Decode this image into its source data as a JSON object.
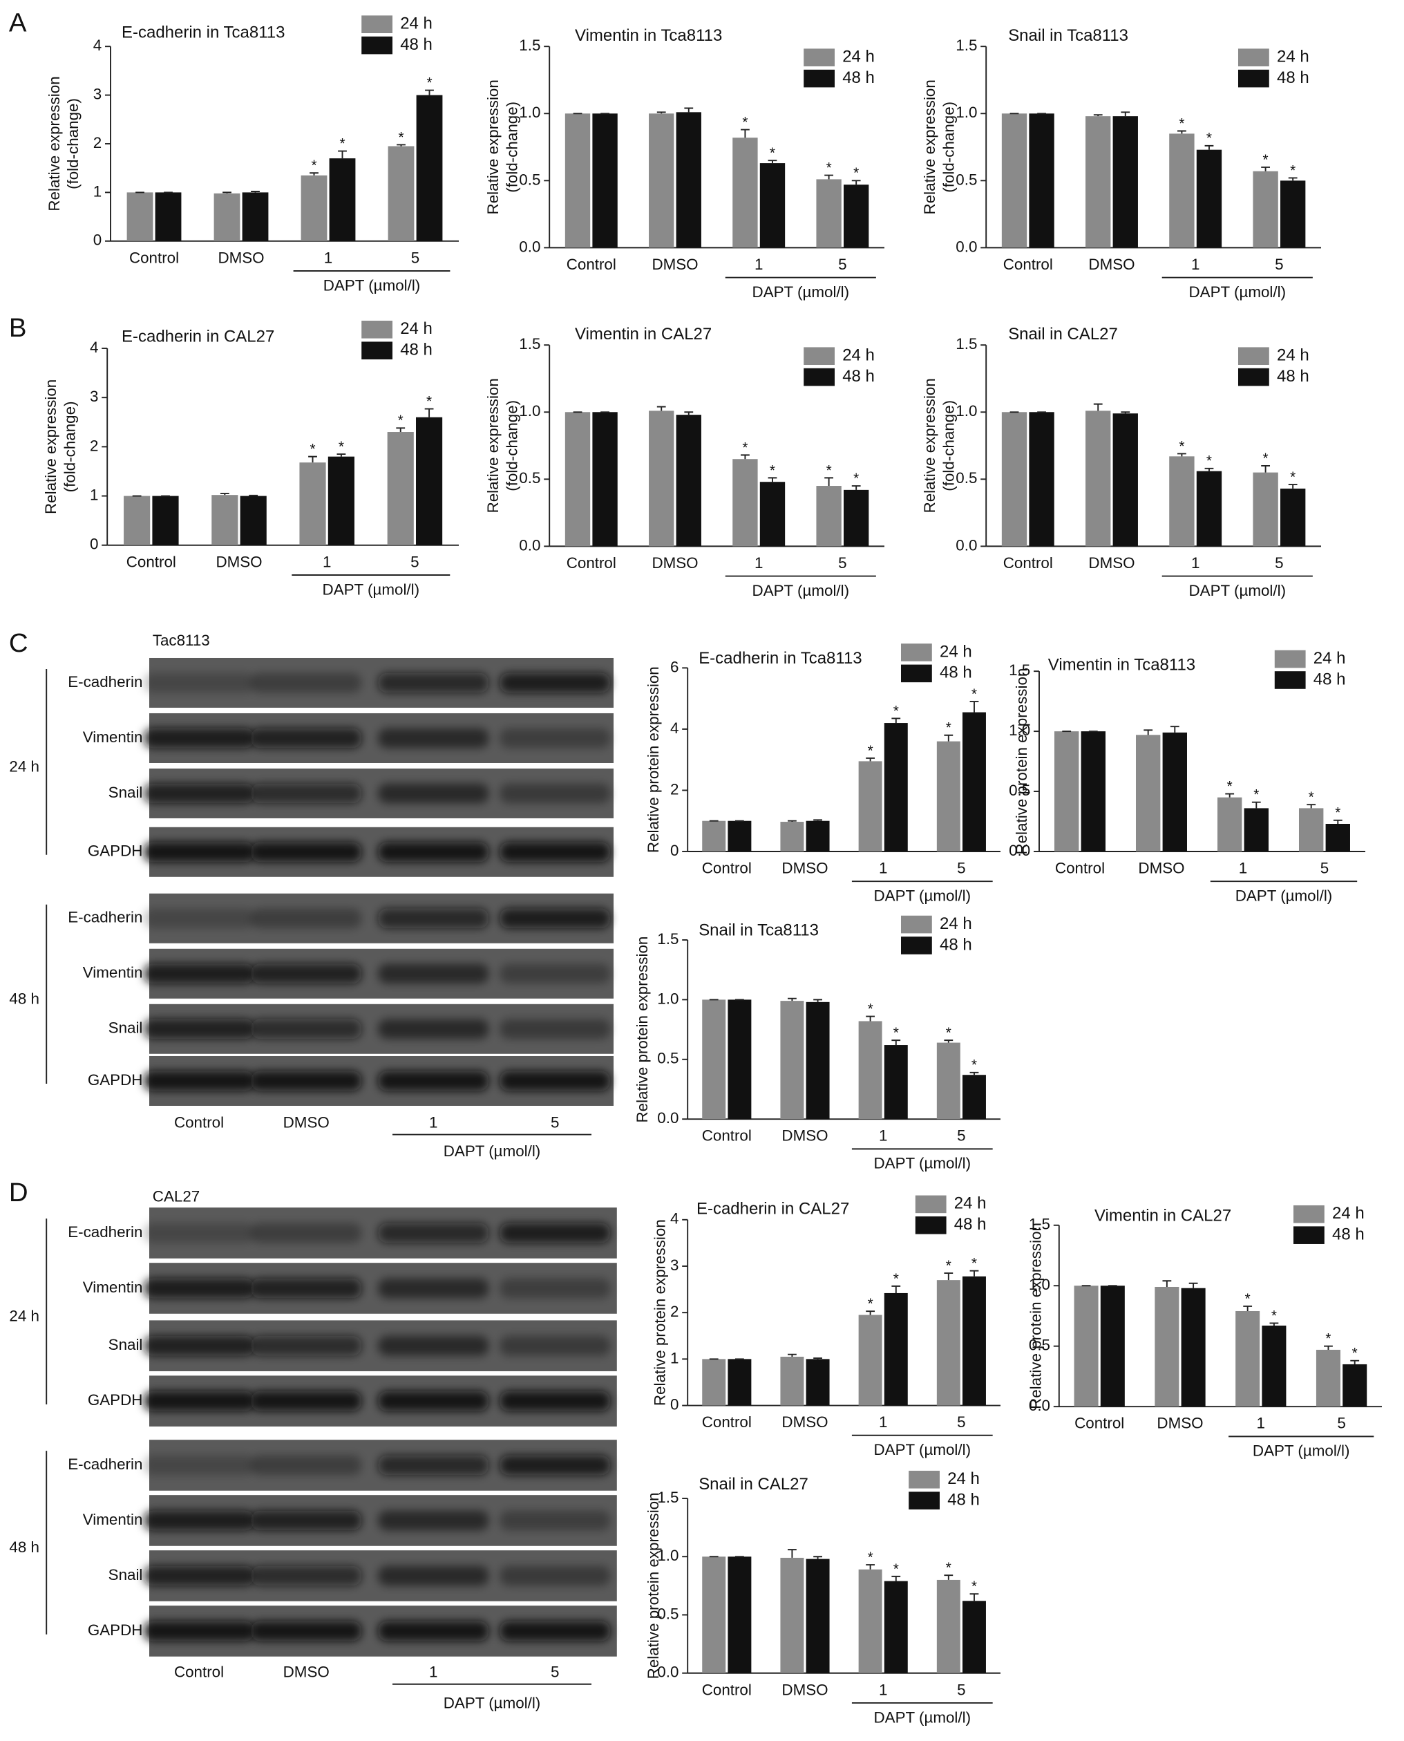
{
  "panel_labels": [
    "A",
    "B",
    "C",
    "D"
  ],
  "blots": [
    {
      "cell": "Tac8113",
      "times": [
        "24 h",
        "48 h"
      ],
      "rows": [
        "E-cadherin",
        "Vimentin",
        "Snail",
        "GAPDH"
      ],
      "lanes": [
        "Control",
        "DMSO",
        "1",
        "5"
      ],
      "lane_group": "DAPT (µmol/l)"
    },
    {
      "cell": "CAL27",
      "times": [
        "24 h",
        "48 h"
      ],
      "rows": [
        "E-cadherin",
        "Vimentin",
        "Snail",
        "GAPDH"
      ],
      "lanes": [
        "Control",
        "DMSO",
        "1",
        "5"
      ],
      "lane_group": "DAPT (µmol/l)"
    }
  ],
  "chart_data": [
    {
      "type": "bar",
      "title": "E-cadherin in Tca8113",
      "ylabel": [
        "Relative expression",
        "(fold-change)"
      ],
      "categories": [
        "Control",
        "DMSO",
        "1",
        "5"
      ],
      "group_label": "DAPT (µmol/l)",
      "ylim": [
        0,
        4
      ],
      "yticks": [
        0,
        1,
        2,
        3,
        4
      ],
      "series": [
        {
          "name": "24 h",
          "color": "#8a8a8a",
          "values": [
            1,
            0.98,
            1.35,
            1.95
          ],
          "errors": [
            0,
            0.02,
            0.05,
            0.03
          ],
          "stars": [
            null,
            null,
            "*",
            "*"
          ]
        },
        {
          "name": "48 h",
          "color": "#111111",
          "values": [
            1,
            1.0,
            1.7,
            3.0
          ],
          "errors": [
            0,
            0.02,
            0.15,
            0.1
          ],
          "stars": [
            null,
            null,
            "*",
            "*"
          ]
        }
      ]
    },
    {
      "type": "bar",
      "title": "Vimentin in Tca8113",
      "ylabel": [
        "Relative expression",
        "(fold-change)"
      ],
      "categories": [
        "Control",
        "DMSO",
        "1",
        "5"
      ],
      "group_label": "DAPT (µmol/l)",
      "ylim": [
        0,
        1.5
      ],
      "yticks": [
        {
          "value": 0,
          "label": "0.0"
        },
        0.5,
        {
          "value": 1,
          "label": "1.0"
        },
        1.5
      ],
      "series": [
        {
          "name": "24 h",
          "color": "#8a8a8a",
          "values": [
            1,
            1.0,
            0.82,
            0.51
          ],
          "errors": [
            0,
            0.01,
            0.06,
            0.03
          ],
          "stars": [
            null,
            null,
            "*",
            "*"
          ]
        },
        {
          "name": "48 h",
          "color": "#111111",
          "values": [
            1,
            1.01,
            0.63,
            0.47
          ],
          "errors": [
            0,
            0.03,
            0.02,
            0.03
          ],
          "stars": [
            null,
            null,
            "*",
            "*"
          ]
        }
      ]
    },
    {
      "type": "bar",
      "title": "Snail in Tca8113",
      "ylabel": [
        "Relative expression",
        "(fold-change)"
      ],
      "categories": [
        "Control",
        "DMSO",
        "1",
        "5"
      ],
      "group_label": "DAPT (µmol/l)",
      "ylim": [
        0,
        1.5
      ],
      "yticks": [
        {
          "value": 0,
          "label": "0.0"
        },
        0.5,
        {
          "value": 1,
          "label": "1.0"
        },
        1.5
      ],
      "series": [
        {
          "name": "24 h",
          "color": "#8a8a8a",
          "values": [
            1,
            0.98,
            0.85,
            0.57
          ],
          "errors": [
            0,
            0.01,
            0.02,
            0.03
          ],
          "stars": [
            null,
            null,
            "*",
            "*"
          ]
        },
        {
          "name": "48 h",
          "color": "#111111",
          "values": [
            1,
            0.98,
            0.73,
            0.5
          ],
          "errors": [
            0,
            0.03,
            0.03,
            0.02
          ],
          "stars": [
            null,
            null,
            "*",
            "*"
          ]
        }
      ]
    },
    {
      "type": "bar",
      "title": "E-cadherin in CAL27",
      "ylabel": [
        "Relative expression",
        "(fold-change)"
      ],
      "categories": [
        "Control",
        "DMSO",
        "1",
        "5"
      ],
      "group_label": "DAPT (µmol/l)",
      "ylim": [
        0,
        4
      ],
      "yticks": [
        0,
        1,
        2,
        3,
        4
      ],
      "series": [
        {
          "name": "24 h",
          "color": "#8a8a8a",
          "values": [
            1,
            1.02,
            1.68,
            2.3
          ],
          "errors": [
            0,
            0.03,
            0.12,
            0.08
          ],
          "stars": [
            null,
            null,
            "*",
            "*"
          ]
        },
        {
          "name": "48 h",
          "color": "#111111",
          "values": [
            1,
            1.0,
            1.8,
            2.6
          ],
          "errors": [
            0,
            0.01,
            0.05,
            0.17
          ],
          "stars": [
            null,
            null,
            "*",
            "*"
          ]
        }
      ]
    },
    {
      "type": "bar",
      "title": "Vimentin in CAL27",
      "ylabel": [
        "Relative expression",
        "(fold-change)"
      ],
      "categories": [
        "Control",
        "DMSO",
        "1",
        "5"
      ],
      "group_label": "DAPT (µmol/l)",
      "ylim": [
        0,
        1.5
      ],
      "yticks": [
        {
          "value": 0,
          "label": "0.0"
        },
        0.5,
        {
          "value": 1,
          "label": "1.0"
        },
        1.5
      ],
      "series": [
        {
          "name": "24 h",
          "color": "#8a8a8a",
          "values": [
            1,
            1.01,
            0.65,
            0.45
          ],
          "errors": [
            0,
            0.03,
            0.03,
            0.06
          ],
          "stars": [
            null,
            null,
            "*",
            "*"
          ]
        },
        {
          "name": "48 h",
          "color": "#111111",
          "values": [
            1,
            0.98,
            0.48,
            0.42
          ],
          "errors": [
            0,
            0.02,
            0.03,
            0.03
          ],
          "stars": [
            null,
            null,
            "*",
            "*"
          ]
        }
      ]
    },
    {
      "type": "bar",
      "title": "Snail in CAL27",
      "ylabel": [
        "Relative expression",
        "(fold-change)"
      ],
      "categories": [
        "Control",
        "DMSO",
        "1",
        "5"
      ],
      "group_label": "DAPT (µmol/l)",
      "ylim": [
        0,
        1.5
      ],
      "yticks": [
        {
          "value": 0,
          "label": "0.0"
        },
        0.5,
        {
          "value": 1,
          "label": "1.0"
        },
        1.5
      ],
      "series": [
        {
          "name": "24 h",
          "color": "#8a8a8a",
          "values": [
            1,
            1.01,
            0.67,
            0.55
          ],
          "errors": [
            0,
            0.05,
            0.02,
            0.05
          ],
          "stars": [
            null,
            null,
            "*",
            "*"
          ]
        },
        {
          "name": "48 h",
          "color": "#111111",
          "values": [
            1,
            0.99,
            0.56,
            0.43
          ],
          "errors": [
            0,
            0.01,
            0.02,
            0.03
          ],
          "stars": [
            null,
            null,
            "*",
            "*"
          ]
        }
      ]
    },
    {
      "type": "bar",
      "title": "E-cadherin in Tca8113",
      "ylabel": [
        "Relative protein expression"
      ],
      "categories": [
        "Control",
        "DMSO",
        "1",
        "5"
      ],
      "group_label": "DAPT (µmol/l)",
      "ylim": [
        0,
        6
      ],
      "yticks": [
        0,
        2,
        4,
        6
      ],
      "series": [
        {
          "name": "24 h",
          "color": "#8a8a8a",
          "values": [
            1,
            0.97,
            2.95,
            3.6
          ],
          "errors": [
            0,
            0.03,
            0.1,
            0.2
          ],
          "stars": [
            null,
            null,
            "*",
            "*"
          ]
        },
        {
          "name": "48 h",
          "color": "#111111",
          "values": [
            1,
            1.0,
            4.2,
            4.55
          ],
          "errors": [
            0,
            0.03,
            0.15,
            0.35
          ],
          "stars": [
            null,
            null,
            "*",
            "*"
          ]
        }
      ]
    },
    {
      "type": "bar",
      "title": "Vimentin in Tca8113",
      "ylabel": [
        "Relative protein expression"
      ],
      "categories": [
        "Control",
        "DMSO",
        "1",
        "5"
      ],
      "group_label": "DAPT (µmol/l)",
      "ylim": [
        0,
        1.5
      ],
      "yticks": [
        {
          "value": 0,
          "label": "0.0"
        },
        0.5,
        {
          "value": 1,
          "label": "1.0"
        },
        1.5
      ],
      "series": [
        {
          "name": "24 h",
          "color": "#8a8a8a",
          "values": [
            1,
            0.97,
            0.45,
            0.36
          ],
          "errors": [
            0,
            0.04,
            0.03,
            0.03
          ],
          "stars": [
            null,
            null,
            "*",
            "*"
          ]
        },
        {
          "name": "48 h",
          "color": "#111111",
          "values": [
            1,
            0.99,
            0.36,
            0.23
          ],
          "errors": [
            0,
            0.05,
            0.05,
            0.03
          ],
          "stars": [
            null,
            null,
            "*",
            "*"
          ]
        }
      ]
    },
    {
      "type": "bar",
      "title": "Snail in Tca8113",
      "ylabel": [
        "Relative protein expression"
      ],
      "categories": [
        "Control",
        "DMSO",
        "1",
        "5"
      ],
      "group_label": "DAPT (µmol/l)",
      "ylim": [
        0,
        1.5
      ],
      "yticks": [
        {
          "value": 0,
          "label": "0.0"
        },
        0.5,
        {
          "value": 1,
          "label": "1.0"
        },
        1.5
      ],
      "series": [
        {
          "name": "24 h",
          "color": "#8a8a8a",
          "values": [
            1,
            0.99,
            0.82,
            0.64
          ],
          "errors": [
            0,
            0.02,
            0.04,
            0.02
          ],
          "stars": [
            null,
            null,
            "*",
            "*"
          ]
        },
        {
          "name": "48 h",
          "color": "#111111",
          "values": [
            1,
            0.98,
            0.62,
            0.37
          ],
          "errors": [
            0,
            0.02,
            0.04,
            0.02
          ],
          "stars": [
            null,
            null,
            "*",
            "*"
          ]
        }
      ]
    },
    {
      "type": "bar",
      "title": "E-cadherin in CAL27",
      "ylabel": [
        "Relative protein expression"
      ],
      "categories": [
        "Control",
        "DMSO",
        "1",
        "5"
      ],
      "group_label": "DAPT (µmol/l)",
      "ylim": [
        0,
        4
      ],
      "yticks": [
        0,
        1,
        2,
        3,
        4
      ],
      "series": [
        {
          "name": "24 h",
          "color": "#8a8a8a",
          "values": [
            1,
            1.05,
            1.95,
            2.7
          ],
          "errors": [
            0,
            0.05,
            0.08,
            0.15
          ],
          "stars": [
            null,
            null,
            "*",
            "*"
          ]
        },
        {
          "name": "48 h",
          "color": "#111111",
          "values": [
            1,
            1.0,
            2.42,
            2.78
          ],
          "errors": [
            0,
            0.02,
            0.15,
            0.12
          ],
          "stars": [
            null,
            null,
            "*",
            "*"
          ]
        }
      ]
    },
    {
      "type": "bar",
      "title": "Vimentin in CAL27",
      "ylabel": [
        "Relative protein expression"
      ],
      "categories": [
        "Control",
        "DMSO",
        "1",
        "5"
      ],
      "group_label": "DAPT (µmol/l)",
      "ylim": [
        0,
        1.5
      ],
      "yticks": [
        {
          "value": 0,
          "label": "0.0"
        },
        0.5,
        {
          "value": 1,
          "label": "1.0"
        },
        1.5
      ],
      "series": [
        {
          "name": "24 h",
          "color": "#8a8a8a",
          "values": [
            1,
            0.99,
            0.79,
            0.47
          ],
          "errors": [
            0,
            0.05,
            0.04,
            0.03
          ],
          "stars": [
            null,
            null,
            "*",
            "*"
          ]
        },
        {
          "name": "48 h",
          "color": "#111111",
          "values": [
            1,
            0.98,
            0.67,
            0.35
          ],
          "errors": [
            0,
            0.04,
            0.02,
            0.03
          ],
          "stars": [
            null,
            null,
            "*",
            "*"
          ]
        }
      ]
    },
    {
      "type": "bar",
      "title": "Snail in CAL27",
      "ylabel": [
        "Relative protein expression"
      ],
      "categories": [
        "Control",
        "DMSO",
        "1",
        "5"
      ],
      "group_label": "DAPT (µmol/l)",
      "ylim": [
        0,
        1.5
      ],
      "yticks": [
        {
          "value": 0,
          "label": "0.0"
        },
        0.5,
        {
          "value": 1,
          "label": "1.0"
        },
        1.5
      ],
      "series": [
        {
          "name": "24 h",
          "color": "#8a8a8a",
          "values": [
            1,
            0.99,
            0.89,
            0.8
          ],
          "errors": [
            0,
            0.07,
            0.04,
            0.04
          ],
          "stars": [
            null,
            null,
            "*",
            "*"
          ]
        },
        {
          "name": "48 h",
          "color": "#111111",
          "values": [
            1,
            0.98,
            0.79,
            0.62
          ],
          "errors": [
            0,
            0.02,
            0.04,
            0.06
          ],
          "stars": [
            null,
            null,
            "*",
            "*"
          ]
        }
      ]
    }
  ]
}
